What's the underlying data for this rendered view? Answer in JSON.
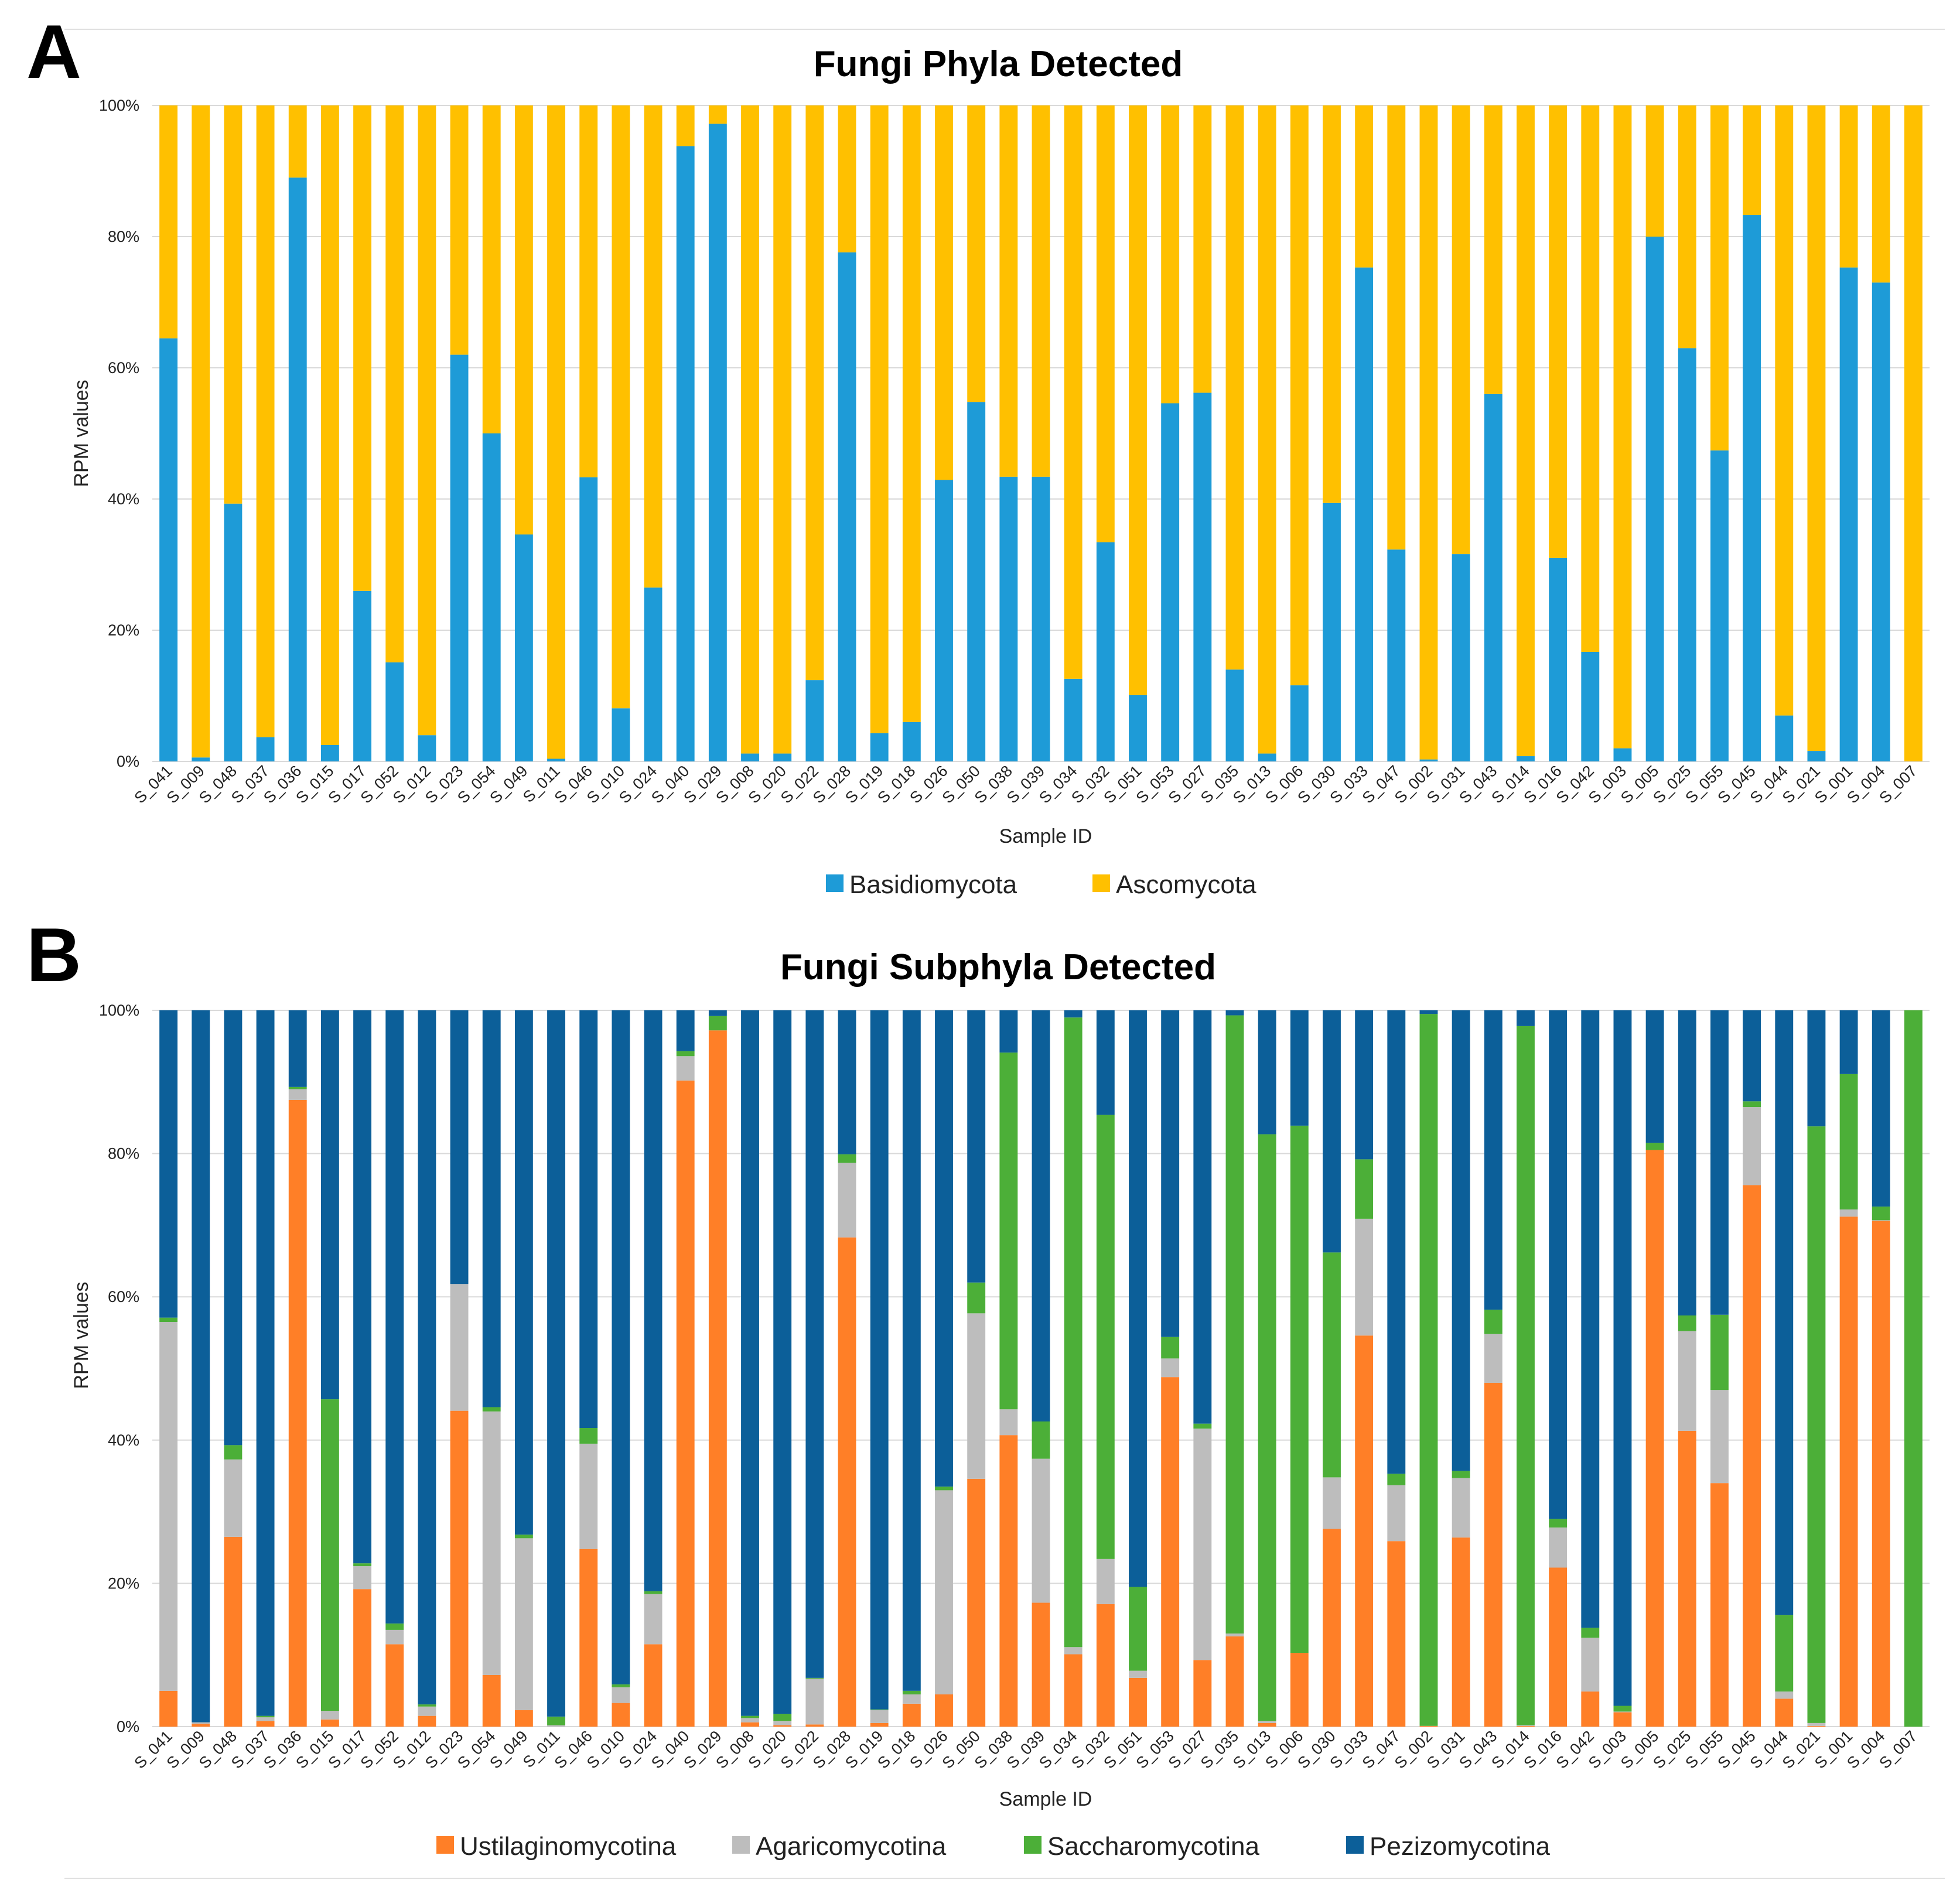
{
  "chart_data": [
    {
      "panel_label": "A",
      "type": "bar",
      "stacked": "100%",
      "title": "Fungi Phyla Detected",
      "xlabel": "Sample ID",
      "ylabel": "RPM values",
      "ylim": [
        0,
        100
      ],
      "yticks": [
        "0%",
        "20%",
        "40%",
        "60%",
        "80%",
        "100%"
      ],
      "grid": true,
      "legend_position": "bottom",
      "categories": [
        "S_041",
        "S_009",
        "S_048",
        "S_037",
        "S_036",
        "S_015",
        "S_017",
        "S_052",
        "S_012",
        "S_023",
        "S_054",
        "S_049",
        "S_011",
        "S_046",
        "S_010",
        "S_024",
        "S_040",
        "S_029",
        "S_008",
        "S_020",
        "S_022",
        "S_028",
        "S_019",
        "S_018",
        "S_026",
        "S_050",
        "S_038",
        "S_039",
        "S_034",
        "S_032",
        "S_051",
        "S_053",
        "S_027",
        "S_035",
        "S_013",
        "S_006",
        "S_030",
        "S_033",
        "S_047",
        "S_002",
        "S_031",
        "S_043",
        "S_014",
        "S_016",
        "S_042",
        "S_003",
        "S_005",
        "S_025",
        "S_055",
        "S_045",
        "S_044",
        "S_021",
        "S_001",
        "S_004",
        "S_007"
      ],
      "series": [
        {
          "name": "Basidiomycota",
          "color": "#1e9bd7",
          "values": [
            64.5,
            0.6,
            39.3,
            3.7,
            89.0,
            2.5,
            26.0,
            15.1,
            4.0,
            62.0,
            50.0,
            34.6,
            0.4,
            43.3,
            8.1,
            26.5,
            93.8,
            97.2,
            1.2,
            1.2,
            12.4,
            77.6,
            4.3,
            6.0,
            42.9,
            54.8,
            43.4,
            43.4,
            12.6,
            33.4,
            10.1,
            54.6,
            56.2,
            14.0,
            1.2,
            11.6,
            39.4,
            75.3,
            32.3,
            0.3,
            31.6,
            56.0,
            0.8,
            31.0,
            16.7,
            2.0,
            80.0,
            63.0,
            47.4,
            83.3,
            7.0,
            1.6,
            75.3,
            73.0,
            0.0
          ]
        },
        {
          "name": "Ascomycota",
          "color": "#ffc000",
          "values": [
            35.5,
            99.4,
            60.7,
            96.3,
            11.0,
            97.5,
            74.0,
            84.9,
            96.0,
            38.0,
            50.0,
            65.4,
            99.6,
            56.7,
            91.9,
            73.5,
            6.2,
            2.8,
            98.8,
            98.8,
            87.6,
            22.4,
            95.7,
            94.0,
            57.1,
            45.2,
            56.6,
            56.6,
            87.4,
            66.6,
            89.9,
            45.4,
            43.8,
            86.0,
            98.8,
            88.4,
            60.6,
            24.7,
            67.7,
            99.7,
            68.4,
            44.0,
            99.2,
            69.0,
            83.3,
            98.0,
            20.0,
            37.0,
            52.6,
            16.7,
            93.0,
            98.4,
            24.7,
            27.0,
            100.0
          ]
        }
      ]
    },
    {
      "panel_label": "B",
      "type": "bar",
      "stacked": "100%",
      "title": "Fungi Subphyla Detected",
      "xlabel": "Sample ID",
      "ylabel": "RPM values",
      "ylim": [
        0,
        100
      ],
      "yticks": [
        "0%",
        "20%",
        "40%",
        "60%",
        "80%",
        "100%"
      ],
      "grid": true,
      "legend_position": "bottom",
      "categories": [
        "S_041",
        "S_009",
        "S_048",
        "S_037",
        "S_036",
        "S_015",
        "S_017",
        "S_052",
        "S_012",
        "S_023",
        "S_054",
        "S_049",
        "S_011",
        "S_046",
        "S_010",
        "S_024",
        "S_040",
        "S_029",
        "S_008",
        "S_020",
        "S_022",
        "S_028",
        "S_019",
        "S_018",
        "S_026",
        "S_050",
        "S_038",
        "S_039",
        "S_034",
        "S_032",
        "S_051",
        "S_053",
        "S_027",
        "S_035",
        "S_013",
        "S_006",
        "S_030",
        "S_033",
        "S_047",
        "S_002",
        "S_031",
        "S_043",
        "S_014",
        "S_016",
        "S_042",
        "S_003",
        "S_005",
        "S_025",
        "S_055",
        "S_045",
        "S_044",
        "S_021",
        "S_001",
        "S_004",
        "S_007"
      ],
      "series": [
        {
          "name": "Ustilaginomycotina",
          "color": "#ff7f27",
          "values": [
            5.0,
            0.4,
            26.5,
            0.8,
            87.5,
            1.0,
            19.2,
            11.5,
            1.5,
            44.1,
            7.2,
            2.3,
            0.0,
            24.8,
            3.3,
            11.5,
            90.2,
            97.2,
            0.6,
            0.2,
            0.3,
            68.3,
            0.5,
            3.2,
            4.5,
            34.6,
            40.7,
            17.3,
            10.1,
            17.1,
            6.8,
            48.8,
            9.3,
            12.6,
            0.5,
            10.3,
            27.6,
            54.6,
            25.9,
            0.1,
            26.4,
            48.0,
            0.1,
            22.2,
            4.9,
            2.0,
            80.5,
            41.3,
            34.0,
            75.6,
            3.9,
            0.1,
            71.2,
            70.6,
            0.0
          ]
        },
        {
          "name": "Agaricomycotina",
          "color": "#bdbdbd",
          "values": [
            51.5,
            0.2,
            10.8,
            0.5,
            1.5,
            1.2,
            3.2,
            2.0,
            1.3,
            17.7,
            36.8,
            24.0,
            0.2,
            14.7,
            2.2,
            7.0,
            3.4,
            0.0,
            0.6,
            0.6,
            6.4,
            10.4,
            1.8,
            1.3,
            28.5,
            23.1,
            3.6,
            20.1,
            1.0,
            6.3,
            1.0,
            2.6,
            32.3,
            0.4,
            0.3,
            0.0,
            7.2,
            16.3,
            7.8,
            0.0,
            8.3,
            6.8,
            0.1,
            5.6,
            7.5,
            0.1,
            0.0,
            13.9,
            13.0,
            10.9,
            1.0,
            0.4,
            1.0,
            0.1,
            0.0
          ]
        },
        {
          "name": "Saccharomycotina",
          "color": "#4caf38",
          "values": [
            0.6,
            0.0,
            2.0,
            0.2,
            0.3,
            43.5,
            0.4,
            0.9,
            0.3,
            0.0,
            0.6,
            0.5,
            1.2,
            2.2,
            0.4,
            0.4,
            0.7,
            2.0,
            0.3,
            1.0,
            0.1,
            1.2,
            0.1,
            0.5,
            0.5,
            4.3,
            49.8,
            5.2,
            87.9,
            62.0,
            11.7,
            3.0,
            0.7,
            86.3,
            81.9,
            73.6,
            31.4,
            8.3,
            1.6,
            99.4,
            1.0,
            3.4,
            97.6,
            1.2,
            1.4,
            0.8,
            1.0,
            2.2,
            10.5,
            0.8,
            10.7,
            83.3,
            18.9,
            1.9,
            100.0
          ]
        },
        {
          "name": "Pezizomycotina",
          "color": "#0c5f99",
          "values": [
            42.9,
            99.4,
            60.7,
            98.5,
            10.7,
            54.3,
            77.2,
            85.6,
            96.9,
            38.2,
            55.4,
            73.2,
            98.6,
            58.3,
            94.1,
            81.1,
            5.7,
            0.8,
            98.5,
            98.2,
            93.2,
            20.1,
            97.6,
            95.0,
            66.5,
            38.0,
            5.9,
            57.4,
            1.0,
            14.6,
            80.5,
            45.6,
            57.7,
            0.7,
            17.3,
            16.1,
            33.8,
            20.8,
            64.7,
            0.5,
            64.3,
            41.8,
            2.2,
            71.0,
            86.2,
            97.1,
            18.5,
            42.6,
            42.5,
            12.7,
            84.4,
            16.2,
            8.9,
            27.4,
            0.0
          ]
        }
      ]
    }
  ]
}
